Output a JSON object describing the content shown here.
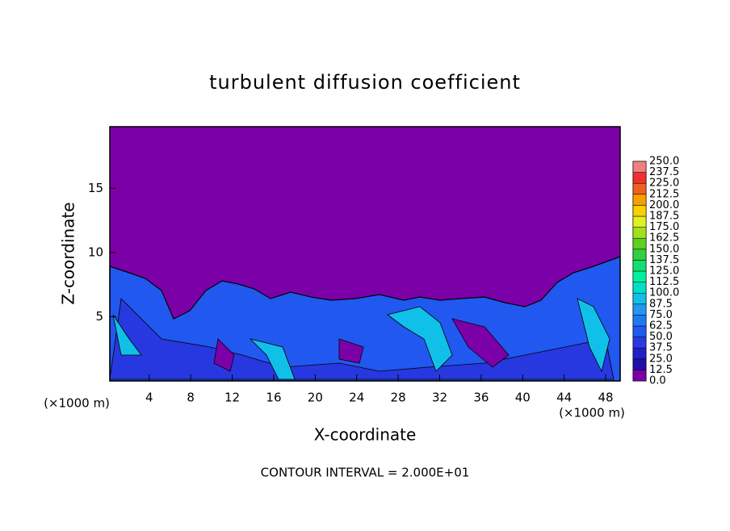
{
  "chart_data": {
    "type": "contour",
    "title": "turbulent diffusion coefficient",
    "x_label": "X-coordinate",
    "y_label": "Z-coordinate",
    "x_unit": "(×1000 m)",
    "y_unit": "(×1000 m)",
    "annotation": "CONTOUR INTERVAL = 2.000E+01",
    "xlim": [
      0.2,
      49.4
    ],
    "xticks": [
      4,
      8,
      12,
      16,
      20,
      24,
      28,
      32,
      36,
      40,
      44,
      48
    ],
    "ylim": [
      0,
      19.8
    ],
    "yticks": [
      5,
      10,
      15
    ],
    "colorbar": {
      "ticks": [
        {
          "value": 0,
          "label": "0.0"
        },
        12.5,
        {
          "value": 25,
          "label": "25.0"
        },
        37.5,
        {
          "value": 50,
          "label": "50.0"
        },
        62.5,
        {
          "value": 75,
          "label": "75.0"
        },
        87.5,
        {
          "value": 100,
          "label": "100.0"
        },
        112.5,
        {
          "value": 125,
          "label": "125.0"
        },
        137.5,
        {
          "value": 150,
          "label": "150.0"
        },
        162.5,
        {
          "value": 175,
          "label": "175.0"
        },
        187.5,
        {
          "value": 200,
          "label": "200.0"
        },
        212.5,
        {
          "value": 225,
          "label": "225.0"
        },
        237.5,
        {
          "value": 250,
          "label": "250.0"
        }
      ],
      "colors": [
        "#7c00a8",
        "#1c10a8",
        "#2020c8",
        "#2838e0",
        "#2058f0",
        "#2078f0",
        "#2098f0",
        "#10c0e8",
        "#00e0c8",
        "#00f0a0",
        "#10e070",
        "#30d040",
        "#60d020",
        "#a0e020",
        "#e0f020",
        "#f8d000",
        "#f8a000",
        "#f06020",
        "#f03030",
        "#f08080"
      ]
    }
  }
}
